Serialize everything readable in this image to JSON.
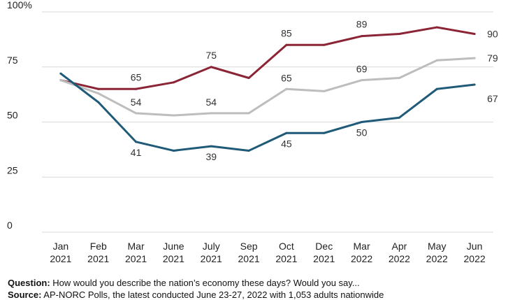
{
  "chart_data": {
    "type": "line",
    "title": "",
    "xlabel": "",
    "ylabel": "",
    "ylim": [
      0,
      100
    ],
    "y_ticks": [
      "0",
      "25",
      "50",
      "75",
      "100%"
    ],
    "y_tick_values": [
      0,
      25,
      50,
      75,
      100
    ],
    "categories": [
      [
        "Jan",
        "2021"
      ],
      [
        "Feb",
        "2021"
      ],
      [
        "Mar",
        "2021"
      ],
      [
        "June",
        "2021"
      ],
      [
        "July",
        "2021"
      ],
      [
        "Sep",
        "2021"
      ],
      [
        "Oct",
        "2021"
      ],
      [
        "Dec",
        "2021"
      ],
      [
        "Mar",
        "2022"
      ],
      [
        "Apr",
        "2022"
      ],
      [
        "May",
        "2022"
      ],
      [
        "Jun",
        "2022"
      ]
    ],
    "grid": true,
    "legend": "none",
    "series": [
      {
        "color": "#8b2535",
        "values": [
          69,
          65,
          65,
          68,
          75,
          70,
          85,
          85,
          89,
          90,
          93,
          90
        ],
        "labels": [
          null,
          null,
          "65",
          null,
          "75",
          null,
          "85",
          null,
          "89",
          null,
          null,
          "90"
        ]
      },
      {
        "color": "#bdbdbd",
        "values": [
          69,
          63,
          54,
          53,
          54,
          54,
          65,
          64,
          69,
          70,
          78,
          79
        ],
        "labels": [
          null,
          null,
          "54",
          null,
          "54",
          null,
          "65",
          null,
          "69",
          null,
          null,
          "79"
        ]
      },
      {
        "color": "#1f5a78",
        "values": [
          72,
          59,
          41,
          37,
          39,
          37,
          45,
          45,
          50,
          52,
          65,
          67
        ],
        "labels": [
          null,
          null,
          "41",
          null,
          "39",
          null,
          "45",
          null,
          "50",
          null,
          null,
          "67"
        ]
      }
    ]
  },
  "footer": {
    "question_label": "Question:",
    "question_text": " How would you describe the nation’s economy these days? Would you say...",
    "source_label": "Source:",
    "source_text": " AP-NORC Polls, the latest conducted June 23-27, 2022 with 1,053 adults nationwide"
  }
}
